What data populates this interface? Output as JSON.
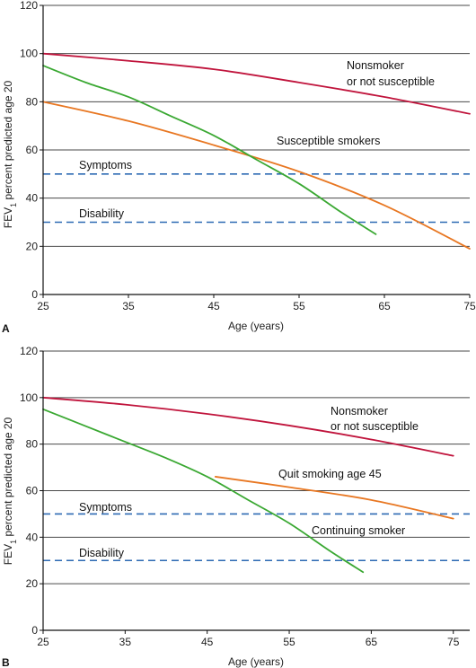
{
  "chart_data": [
    {
      "type": "line",
      "panel_label": "A",
      "xlabel": "Age (years)",
      "ylabel_main": "FEV",
      "ylabel_sub": "1",
      "ylabel_rest": " percent predicted age 20",
      "xlim": [
        25,
        75
      ],
      "ylim": [
        0,
        120
      ],
      "xticks": [
        25,
        35,
        45,
        55,
        65,
        75
      ],
      "yticks": [
        0,
        20,
        40,
        60,
        80,
        100,
        120
      ],
      "grid": "horizontal",
      "series": [
        {
          "color": "#c0143c",
          "x": [
            25,
            35,
            45,
            55,
            65,
            75
          ],
          "y": [
            100,
            97,
            93.5,
            88,
            82,
            75
          ]
        },
        {
          "color": "#e87722",
          "x": [
            25,
            35,
            45,
            55,
            65,
            75
          ],
          "y": [
            80,
            72,
            62,
            51,
            37,
            19
          ]
        },
        {
          "color": "#3aa832",
          "x": [
            25,
            30,
            35,
            40,
            45,
            50,
            55,
            60,
            64
          ],
          "y": [
            95,
            88,
            82,
            74,
            66,
            56,
            46,
            34,
            25
          ]
        }
      ],
      "reference_lines": [
        {
          "label": "Symptoms",
          "y": 50,
          "color": "#2d6ab3"
        },
        {
          "label": "Disability",
          "y": 30,
          "color": "#2d6ab3"
        }
      ],
      "annotations": [
        {
          "line1": "Nonsmoker",
          "line2": "or not susceptible"
        },
        {
          "line1": "Susceptible smokers"
        }
      ]
    },
    {
      "type": "line",
      "panel_label": "B",
      "xlabel": "Age (years)",
      "ylabel_main": "FEV",
      "ylabel_sub": "1",
      "ylabel_rest": " percent predicted age 20",
      "xlim": [
        25,
        77
      ],
      "ylim": [
        0,
        120
      ],
      "xticks": [
        25,
        35,
        45,
        55,
        65,
        75
      ],
      "yticks": [
        0,
        20,
        40,
        60,
        80,
        100,
        120
      ],
      "grid": "horizontal",
      "series": [
        {
          "color": "#c0143c",
          "x": [
            25,
            35,
            45,
            55,
            65,
            75
          ],
          "y": [
            100,
            97,
            93,
            88,
            82,
            75
          ]
        },
        {
          "color": "#3aa832",
          "x": [
            25,
            30,
            35,
            40,
            45,
            50,
            55,
            60,
            64
          ],
          "y": [
            95,
            88,
            81,
            74,
            66,
            56,
            46,
            34,
            25
          ]
        },
        {
          "color": "#e87722",
          "x": [
            46,
            55,
            65,
            75
          ],
          "y": [
            66,
            61.5,
            56,
            48
          ]
        }
      ],
      "reference_lines": [
        {
          "label": "Symptoms",
          "y": 50,
          "color": "#2d6ab3"
        },
        {
          "label": "Disability",
          "y": 30,
          "color": "#2d6ab3"
        }
      ],
      "annotations": [
        {
          "line1": "Nonsmoker",
          "line2": "or not susceptible"
        },
        {
          "line1": "Quit smoking age 45"
        },
        {
          "line1": "Continuing smoker"
        }
      ]
    }
  ]
}
